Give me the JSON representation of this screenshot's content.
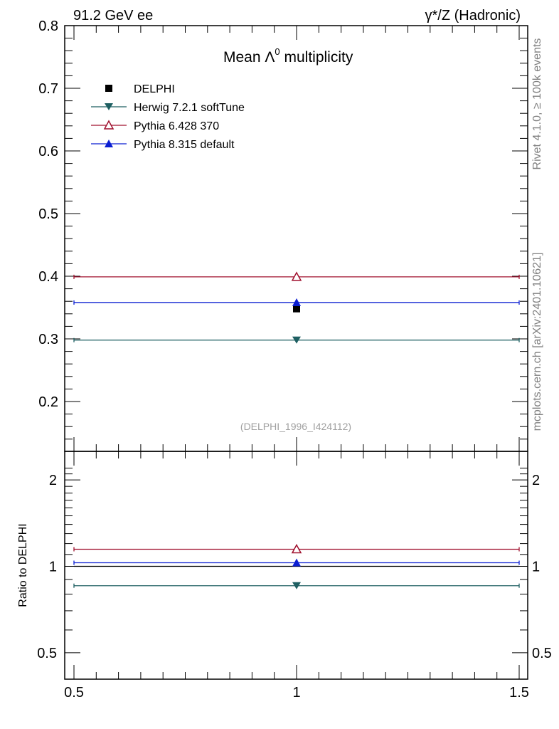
{
  "header": {
    "left": "91.2 GeV ee",
    "right": "γ*/Z (Hadronic)"
  },
  "side_texts": {
    "rivet": "Rivet 4.1.0, ≥ 100k events",
    "mcplots": "mcplots.cern.ch [arXiv:2401.10621]"
  },
  "colors": {
    "herwig": "#1e5f62",
    "pythia6": "#a0112e",
    "pythia8": "#0a1ed2",
    "data": "#000000"
  },
  "chart_data": [
    {
      "type": "scatter",
      "panel": "main",
      "title": "Mean Λ⁰ multiplicity",
      "title_main": "Mean Λ",
      "title_sup": "0",
      "title_rest": " multiplicity",
      "analysis_label": "(DELPHI_1996_I424112)",
      "xlabel": "",
      "ylabel": "",
      "xlim": [
        0.5,
        1.5
      ],
      "ylim": [
        0.12,
        0.8
      ],
      "yticks": [
        0.2,
        0.3,
        0.4,
        0.5,
        0.6,
        0.7,
        0.8
      ],
      "ytick_labels": [
        "0.2",
        "0.3",
        "0.4",
        "0.5",
        "0.6",
        "0.7",
        "0.8"
      ],
      "legend_position": "top-left",
      "series": [
        {
          "name": "DELPHI",
          "key": "data",
          "marker": "square",
          "x": [
            1.0
          ],
          "y": [
            0.348
          ],
          "xerr": [
            0
          ],
          "yerr": [
            0.004
          ]
        },
        {
          "name": "Herwig 7.2.1 softTune",
          "key": "herwig",
          "marker": "triangle-down",
          "x": [
            1.0
          ],
          "y": [
            0.298
          ],
          "xerr": [
            0.5
          ]
        },
        {
          "name": "Pythia 6.428 370",
          "key": "pythia6",
          "marker": "triangle-up-open",
          "x": [
            1.0
          ],
          "y": [
            0.399
          ],
          "xerr": [
            0.5
          ]
        },
        {
          "name": "Pythia 8.315 default",
          "key": "pythia8",
          "marker": "triangle-up",
          "x": [
            1.0
          ],
          "y": [
            0.358
          ],
          "xerr": [
            0.5
          ]
        }
      ]
    },
    {
      "type": "scatter",
      "panel": "ratio",
      "ylabel": "Ratio to DELPHI",
      "ylim": [
        0.4,
        2.3
      ],
      "yscale": "log",
      "xlim": [
        0.5,
        1.5
      ],
      "xticks": [
        0.5,
        1,
        1.5
      ],
      "xtick_labels": [
        "0.5",
        "1",
        "1.5"
      ],
      "yticks": [
        0.5,
        1,
        2
      ],
      "ytick_labels": [
        "0.5",
        "1",
        "2"
      ],
      "reference": 1.0,
      "series": [
        {
          "name": "Herwig 7.2.1 softTune",
          "key": "herwig",
          "marker": "triangle-down",
          "x": [
            1.0
          ],
          "y": [
            0.856
          ],
          "xerr": [
            0.5
          ]
        },
        {
          "name": "Pythia 6.428 370",
          "key": "pythia6",
          "marker": "triangle-up-open",
          "x": [
            1.0
          ],
          "y": [
            1.147
          ],
          "xerr": [
            0.5
          ]
        },
        {
          "name": "Pythia 8.315 default",
          "key": "pythia8",
          "marker": "triangle-up",
          "x": [
            1.0
          ],
          "y": [
            1.029
          ],
          "xerr": [
            0.5
          ]
        }
      ]
    }
  ]
}
